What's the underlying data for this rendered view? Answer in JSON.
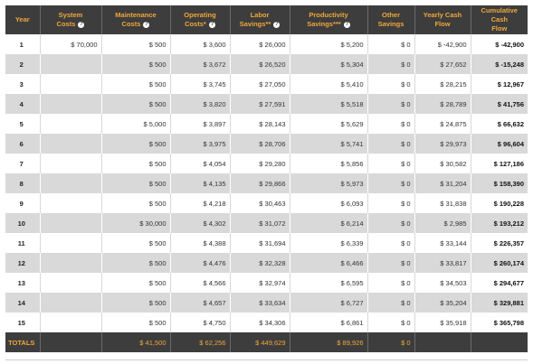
{
  "headers": {
    "year": "Year",
    "system_costs": [
      "System",
      "Costs"
    ],
    "maintenance_costs": [
      "Maintenance",
      "Costs"
    ],
    "operating_costs": [
      "Operating",
      "Costs*"
    ],
    "labor_savings": [
      "Labor",
      "Savings**"
    ],
    "productivity_savings": [
      "Productivity",
      "Savings***"
    ],
    "other_savings": [
      "Other",
      "Savings"
    ],
    "yearly_cash_flow": [
      "Yearly Cash",
      "Flow"
    ],
    "cumulative_cash_flow": [
      "Cumulative Cash",
      "Flow"
    ],
    "help_icon_glyph": "?"
  },
  "rows": [
    {
      "year": "1",
      "system": "$ 70,000",
      "maint": "$ 500",
      "oper": "$ 3,600",
      "labor": "$ 26,000",
      "prod": "$ 5,200",
      "other": "$ 0",
      "yearly": "$ -42,900",
      "cum": "$ -42,900"
    },
    {
      "year": "2",
      "system": "",
      "maint": "$ 500",
      "oper": "$ 3,672",
      "labor": "$ 26,520",
      "prod": "$ 5,304",
      "other": "$ 0",
      "yearly": "$ 27,652",
      "cum": "$ -15,248"
    },
    {
      "year": "3",
      "system": "",
      "maint": "$ 500",
      "oper": "$ 3,745",
      "labor": "$ 27,050",
      "prod": "$ 5,410",
      "other": "$ 0",
      "yearly": "$ 28,215",
      "cum": "$ 12,967"
    },
    {
      "year": "4",
      "system": "",
      "maint": "$ 500",
      "oper": "$ 3,820",
      "labor": "$ 27,591",
      "prod": "$ 5,518",
      "other": "$ 0",
      "yearly": "$ 28,789",
      "cum": "$ 41,756"
    },
    {
      "year": "5",
      "system": "",
      "maint": "$ 5,000",
      "oper": "$ 3,897",
      "labor": "$ 28,143",
      "prod": "$ 5,629",
      "other": "$ 0",
      "yearly": "$ 24,875",
      "cum": "$ 66,632"
    },
    {
      "year": "6",
      "system": "",
      "maint": "$ 500",
      "oper": "$ 3,975",
      "labor": "$ 28,706",
      "prod": "$ 5,741",
      "other": "$ 0",
      "yearly": "$ 29,973",
      "cum": "$ 96,604"
    },
    {
      "year": "7",
      "system": "",
      "maint": "$ 500",
      "oper": "$ 4,054",
      "labor": "$ 29,280",
      "prod": "$ 5,856",
      "other": "$ 0",
      "yearly": "$ 30,582",
      "cum": "$ 127,186"
    },
    {
      "year": "8",
      "system": "",
      "maint": "$ 500",
      "oper": "$ 4,135",
      "labor": "$ 29,866",
      "prod": "$ 5,973",
      "other": "$ 0",
      "yearly": "$ 31,204",
      "cum": "$ 158,390"
    },
    {
      "year": "9",
      "system": "",
      "maint": "$ 500",
      "oper": "$ 4,218",
      "labor": "$ 30,463",
      "prod": "$ 6,093",
      "other": "$ 0",
      "yearly": "$ 31,838",
      "cum": "$ 190,228"
    },
    {
      "year": "10",
      "system": "",
      "maint": "$ 30,000",
      "oper": "$ 4,302",
      "labor": "$ 31,072",
      "prod": "$ 6,214",
      "other": "$ 0",
      "yearly": "$ 2,985",
      "cum": "$ 193,212"
    },
    {
      "year": "11",
      "system": "",
      "maint": "$ 500",
      "oper": "$ 4,388",
      "labor": "$ 31,694",
      "prod": "$ 6,339",
      "other": "$ 0",
      "yearly": "$ 33,144",
      "cum": "$ 226,357"
    },
    {
      "year": "12",
      "system": "",
      "maint": "$ 500",
      "oper": "$ 4,476",
      "labor": "$ 32,328",
      "prod": "$ 6,466",
      "other": "$ 0",
      "yearly": "$ 33,817",
      "cum": "$ 260,174"
    },
    {
      "year": "13",
      "system": "",
      "maint": "$ 500",
      "oper": "$ 4,566",
      "labor": "$ 32,974",
      "prod": "$ 6,595",
      "other": "$ 0",
      "yearly": "$ 34,503",
      "cum": "$ 294,677"
    },
    {
      "year": "14",
      "system": "",
      "maint": "$ 500",
      "oper": "$ 4,657",
      "labor": "$ 33,634",
      "prod": "$ 6,727",
      "other": "$ 0",
      "yearly": "$ 35,204",
      "cum": "$ 329,881"
    },
    {
      "year": "15",
      "system": "",
      "maint": "$ 500",
      "oper": "$ 4,750",
      "labor": "$ 34,306",
      "prod": "$ 6,861",
      "other": "$ 0",
      "yearly": "$ 35,918",
      "cum": "$ 365,798"
    }
  ],
  "totals": {
    "label": "TOTALS",
    "system": "",
    "maint": "$ 41,500",
    "oper": "$ 62,256",
    "labor": "$ 449,629",
    "prod": "$ 89,926",
    "other": "$ 0",
    "yearly": "",
    "cum": ""
  },
  "colors": {
    "header_bg": "#3d3d3d",
    "header_text": "#f0a73a",
    "row_alt_bg": "#d9d9d9"
  }
}
